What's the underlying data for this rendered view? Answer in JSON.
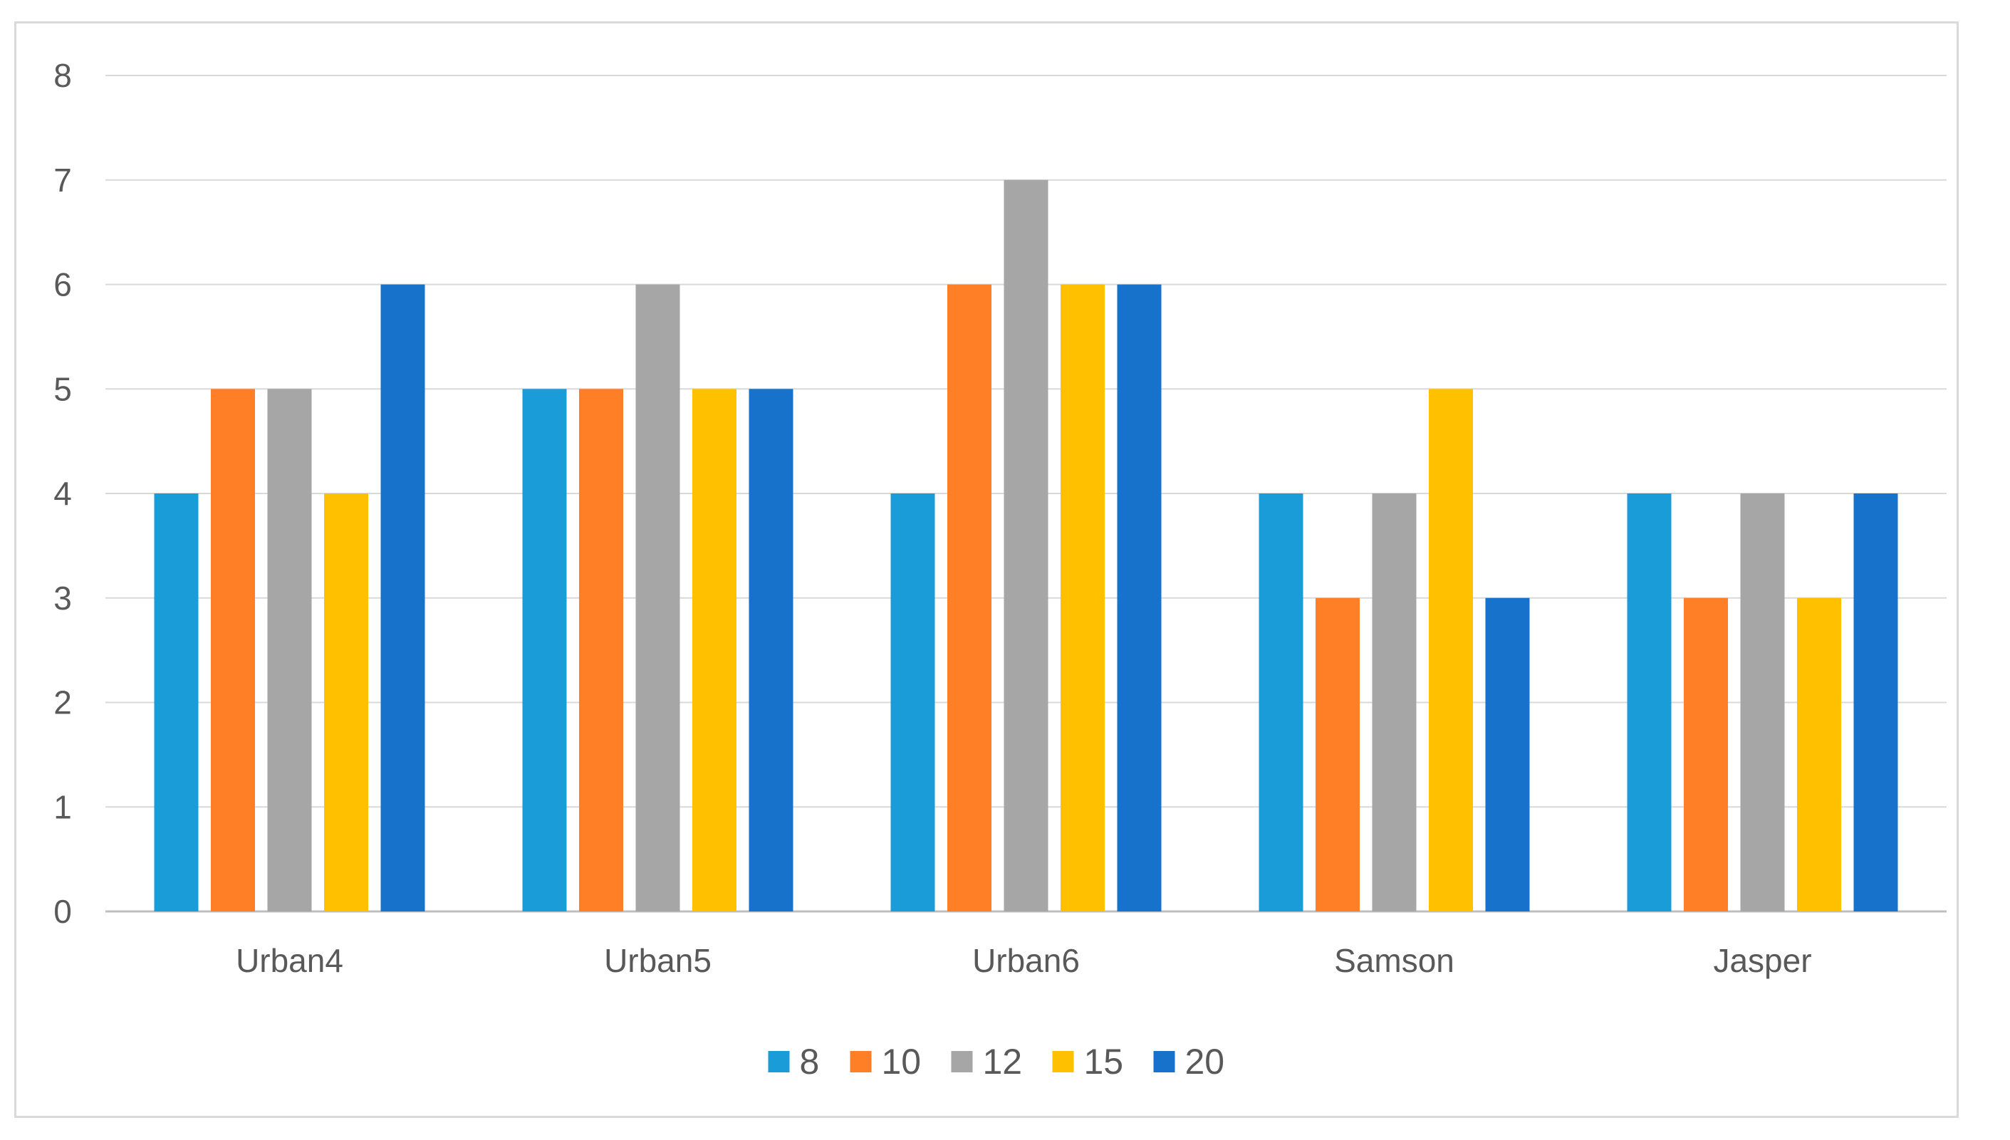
{
  "chart_data": {
    "type": "bar",
    "title": "",
    "xlabel": "",
    "ylabel": "",
    "categories": [
      "Urban4",
      "Urban5",
      "Urban6",
      "Samson",
      "Jasper"
    ],
    "series": [
      {
        "name": "8",
        "color": "#1A9CD9",
        "values": [
          4,
          5,
          4,
          4,
          4
        ]
      },
      {
        "name": "10",
        "color": "#FF7F27",
        "values": [
          5,
          5,
          6,
          3,
          3
        ]
      },
      {
        "name": "12",
        "color": "#A6A6A6",
        "values": [
          5,
          6,
          7,
          4,
          4
        ]
      },
      {
        "name": "15",
        "color": "#FFC000",
        "values": [
          4,
          5,
          6,
          5,
          3
        ]
      },
      {
        "name": "20",
        "color": "#1772CB",
        "values": [
          6,
          5,
          6,
          3,
          4
        ]
      }
    ],
    "ylim": [
      0,
      8
    ],
    "yticks": [
      "0",
      "1",
      "2",
      "3",
      "4",
      "5",
      "6",
      "7",
      "8"
    ],
    "grid": true,
    "legend_position": "bottom"
  }
}
